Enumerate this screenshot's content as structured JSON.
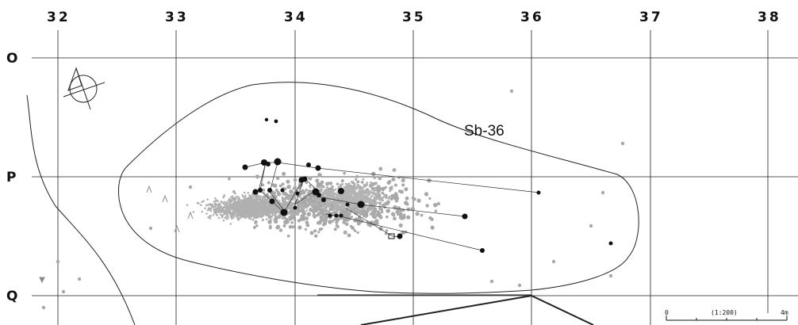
{
  "grid": {
    "columns": [
      "32",
      "33",
      "34",
      "35",
      "36",
      "37",
      "38"
    ],
    "rows": [
      "O",
      "P",
      "Q"
    ]
  },
  "feature": {
    "label": "Sb-36"
  },
  "scale": {
    "zero": "0",
    "ratio": "(1:200)",
    "max": "4m"
  },
  "colors": {
    "line": "#222222",
    "artifact_gray": "#a8a8a8",
    "artifact_dark": "#111111"
  },
  "icons": {
    "north": "north-arrow-icon"
  }
}
